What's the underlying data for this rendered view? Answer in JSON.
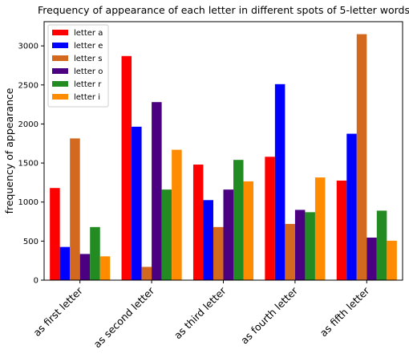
{
  "chart_data": {
    "type": "bar",
    "title": "Frequency of appearance of each letter in different spots of 5-letter words",
    "y_label": "frequency of appearance",
    "categories": [
      "as first letter",
      "as second letter",
      "as third letter",
      "as fourth letter",
      "as fifth letter"
    ],
    "series": [
      {
        "name": "letter a",
        "color": "#ff0000",
        "values": [
          1180,
          2870,
          1480,
          1580,
          1275
        ]
      },
      {
        "name": "letter e",
        "color": "#0000ff",
        "values": [
          425,
          1965,
          1025,
          2510,
          1875
        ]
      },
      {
        "name": "letter s",
        "color": "#d2691e",
        "values": [
          1815,
          170,
          680,
          720,
          3150
        ]
      },
      {
        "name": "letter o",
        "color": "#4b0082",
        "values": [
          335,
          2280,
          1160,
          900,
          545
        ]
      },
      {
        "name": "letter r",
        "color": "#228b22",
        "values": [
          680,
          1160,
          1540,
          870,
          890
        ]
      },
      {
        "name": "letter i",
        "color": "#ff8c00",
        "values": [
          305,
          1670,
          1265,
          1315,
          505
        ]
      }
    ],
    "ylim": [
      0,
      3310
    ],
    "yticks": [
      0,
      500,
      1000,
      1500,
      2000,
      2500,
      3000
    ],
    "legend": "upper left"
  }
}
